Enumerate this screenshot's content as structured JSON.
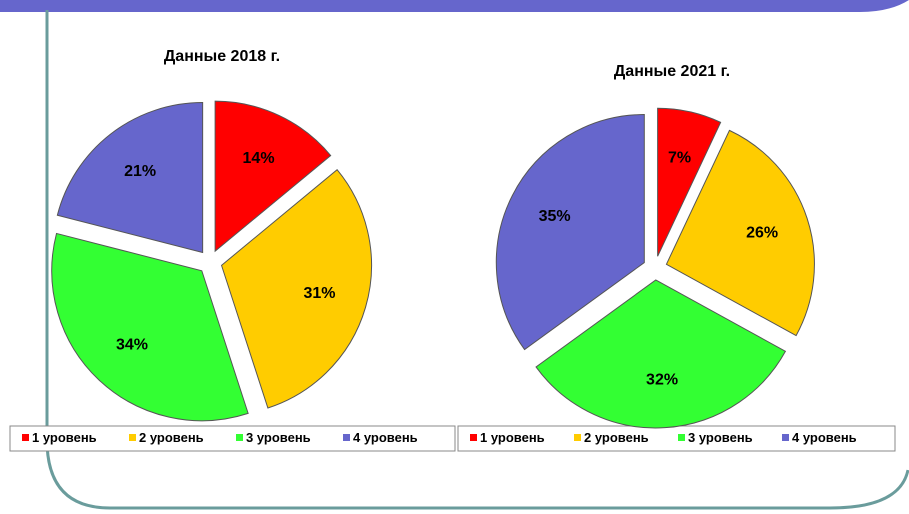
{
  "chart_data": [
    {
      "type": "pie",
      "title": "Данные 2018 г.",
      "categories": [
        "1 уровень",
        "2 уровень",
        "3 уровень",
        "4 уровень"
      ],
      "values": [
        14,
        31,
        34,
        21
      ],
      "value_labels": [
        "14%",
        "31%",
        "34%",
        "21%"
      ],
      "colors": [
        "#ff0000",
        "#ffcc00",
        "#33ff33",
        "#6666cc"
      ]
    },
    {
      "type": "pie",
      "title": "Данные 2021 г.",
      "categories": [
        "1 уровень",
        "2 уровень",
        "3 уровень",
        "4 уровень"
      ],
      "values": [
        7,
        26,
        32,
        35
      ],
      "value_labels": [
        "7%",
        "26%",
        "32%",
        "35%"
      ],
      "colors": [
        "#ff0000",
        "#ffcc00",
        "#33ff33",
        "#6666cc"
      ]
    }
  ]
}
